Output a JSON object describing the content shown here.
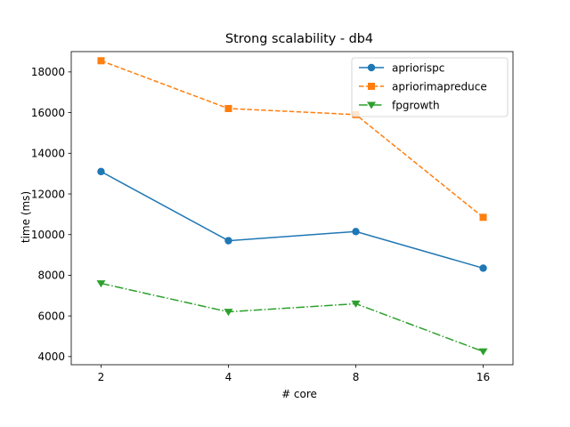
{
  "chart_data": {
    "type": "line",
    "title": "Strong scalability - db4",
    "xlabel": "# core",
    "ylabel": "time (ms)",
    "x": [
      2,
      4,
      8,
      16
    ],
    "x_ticks": [
      "2",
      "4",
      "8",
      "16"
    ],
    "x_scale": "log2",
    "y_ticks": [
      "4000",
      "6000",
      "8000",
      "10000",
      "12000",
      "14000",
      "16000",
      "18000"
    ],
    "ylim": [
      3600,
      19000
    ],
    "grid": false,
    "legend_position": "top-right",
    "series": [
      {
        "name": "apriorispc",
        "values": [
          13100,
          9700,
          10150,
          8350
        ],
        "color": "#1f77b4",
        "marker": "circle",
        "linestyle": "solid"
      },
      {
        "name": "apriorimapreduce",
        "values": [
          18550,
          16200,
          15900,
          10850
        ],
        "color": "#ff7f0e",
        "marker": "square",
        "linestyle": "dashed"
      },
      {
        "name": "fpgrowth",
        "values": [
          7600,
          6200,
          6600,
          4250
        ],
        "color": "#2ca02c",
        "marker": "triangle-down",
        "linestyle": "dashdot"
      }
    ]
  }
}
